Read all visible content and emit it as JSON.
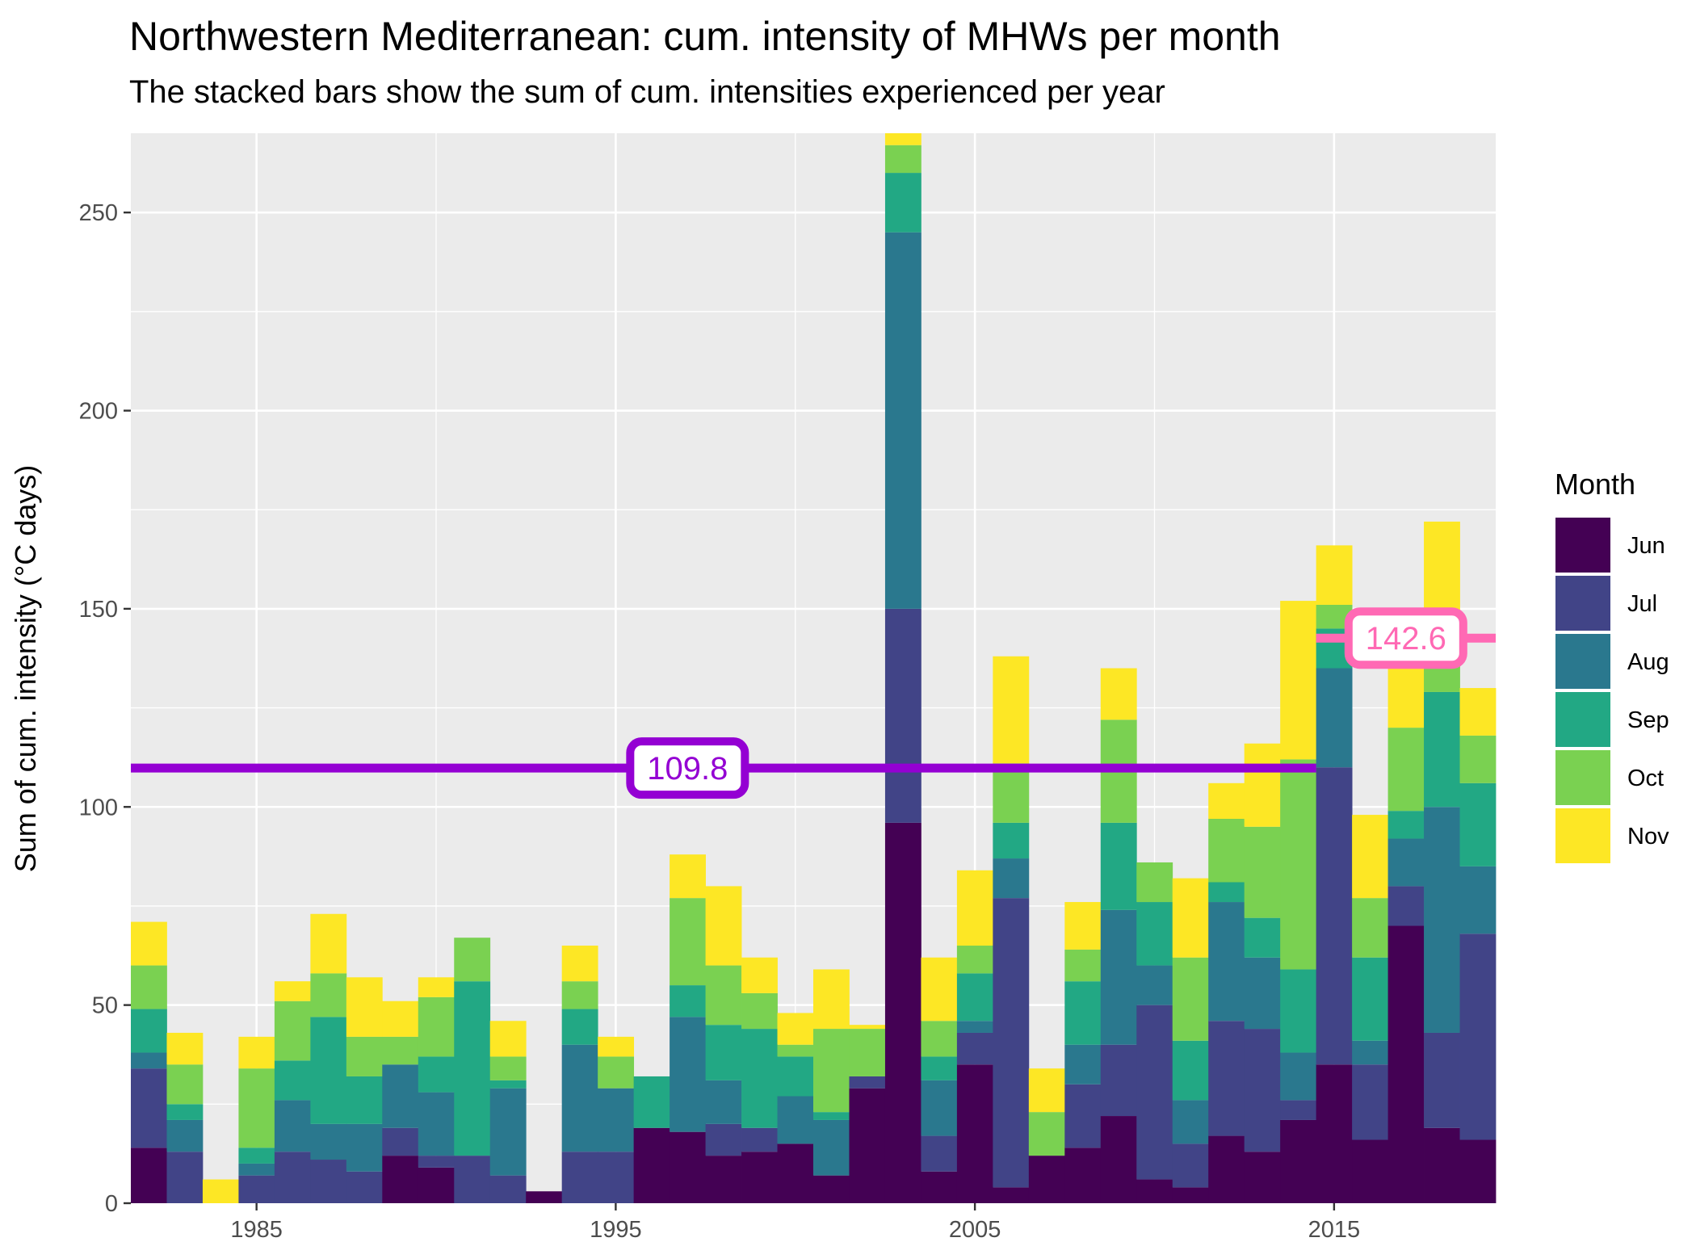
{
  "chart_data": {
    "type": "bar",
    "stacked": true,
    "title": "Northwestern Mediterranean: cum. intensity of MHWs per month",
    "subtitle": "The stacked bars show the sum of cum. intensities experienced per year",
    "xlabel": "",
    "ylabel": "Sum of cum. intensity (°C days)",
    "xlim": [
      1981.5,
      2019.5
    ],
    "ylim": [
      0,
      270
    ],
    "x_ticks": [
      1985,
      1995,
      2005,
      2015
    ],
    "y_ticks": [
      0,
      50,
      100,
      150,
      200,
      250
    ],
    "grid": true,
    "legend": {
      "title": "Month",
      "placement": "right"
    },
    "x": [
      1982,
      1983,
      1984,
      1985,
      1986,
      1987,
      1988,
      1989,
      1990,
      1991,
      1992,
      1993,
      1994,
      1995,
      1996,
      1997,
      1998,
      1999,
      2000,
      2001,
      2002,
      2003,
      2004,
      2005,
      2006,
      2007,
      2008,
      2009,
      2010,
      2011,
      2012,
      2013,
      2014,
      2015,
      2016,
      2017,
      2018,
      2019
    ],
    "series": [
      {
        "name": "Jun",
        "color": "#440154",
        "values": [
          14,
          0,
          0,
          0,
          0,
          0,
          0,
          12,
          9,
          0,
          0,
          3,
          0,
          0,
          19,
          18,
          12,
          13,
          15,
          7,
          29,
          96,
          8,
          35,
          4,
          12,
          14,
          22,
          6,
          4,
          17,
          13,
          21,
          35,
          16,
          70,
          19,
          16
        ]
      },
      {
        "name": "Jul",
        "color": "#414487",
        "values": [
          20,
          13,
          0,
          7,
          13,
          11,
          8,
          7,
          3,
          12,
          7,
          0,
          13,
          13,
          0,
          0,
          8,
          6,
          0,
          0,
          3,
          54,
          9,
          8,
          73,
          0,
          16,
          18,
          44,
          11,
          29,
          31,
          5,
          75,
          19,
          10,
          24,
          52
        ]
      },
      {
        "name": "Aug",
        "color": "#2A788E",
        "values": [
          4,
          8,
          0,
          3,
          13,
          9,
          12,
          16,
          16,
          0,
          22,
          0,
          27,
          16,
          0,
          29,
          11,
          0,
          12,
          14,
          0,
          95,
          14,
          3,
          10,
          0,
          10,
          34,
          10,
          11,
          30,
          18,
          12,
          25,
          6,
          12,
          57,
          17
        ]
      },
      {
        "name": "Sep",
        "color": "#22A884",
        "values": [
          11,
          4,
          0,
          4,
          10,
          27,
          12,
          0,
          9,
          44,
          2,
          0,
          9,
          0,
          13,
          8,
          14,
          25,
          10,
          2,
          0,
          15,
          6,
          12,
          9,
          0,
          16,
          22,
          16,
          15,
          5,
          10,
          21,
          10,
          21,
          7,
          29,
          21
        ]
      },
      {
        "name": "Oct",
        "color": "#7AD151",
        "values": [
          11,
          10,
          0,
          20,
          15,
          11,
          10,
          7,
          15,
          11,
          6,
          0,
          7,
          8,
          0,
          22,
          15,
          9,
          3,
          21,
          12,
          7,
          9,
          7,
          15,
          11,
          8,
          26,
          10,
          21,
          16,
          23,
          53,
          6,
          15,
          21,
          11,
          12
        ]
      },
      {
        "name": "Nov",
        "color": "#FDE725",
        "values": [
          11,
          8,
          6,
          8,
          5,
          15,
          15,
          9,
          5,
          0,
          9,
          0,
          9,
          5,
          0,
          11,
          20,
          9,
          8,
          15,
          1,
          3,
          16,
          19,
          27,
          11,
          12,
          13,
          0,
          20,
          9,
          21,
          40,
          15,
          21,
          30,
          32,
          12
        ]
      }
    ],
    "annotations": [
      {
        "label": "109.8",
        "value": 109.8,
        "x_start": 1981.5,
        "x_end": 2014.5,
        "label_x": 1997,
        "color": "#9400D3"
      },
      {
        "label": "142.6",
        "value": 142.6,
        "x_start": 2014.5,
        "x_end": 2019.5,
        "label_x": 2017,
        "color": "#FF69B4"
      }
    ]
  }
}
